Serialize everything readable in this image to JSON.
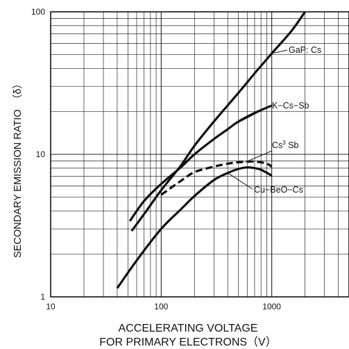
{
  "chart_data": {
    "type": "line",
    "title": "",
    "xscale": "log",
    "yscale": "log",
    "xlim": [
      10,
      5000
    ],
    "ylim": [
      1,
      100
    ],
    "grid": true,
    "xticks": [
      "10",
      "100",
      "1000"
    ],
    "yticks": [
      "1",
      "10",
      "100"
    ],
    "xlabel_line1": "ACCELERATING VOLTAGE",
    "xlabel_line2": "FOR PRIMARY ELECTRONS（V）",
    "ylabel": "SECONDARY EMISSION RATIO　（δ）",
    "series": [
      {
        "name": "GaP: Cs",
        "style": "solid",
        "x": [
          54,
          70,
          100,
          150,
          200,
          300,
          500,
          700,
          1000,
          1500,
          2000
        ],
        "y": [
          2.9,
          3.8,
          5.6,
          8.3,
          11.5,
          17,
          27,
          37,
          51,
          73,
          100
        ]
      },
      {
        "name": "K−Cs−Sb",
        "style": "solid",
        "x": [
          52,
          70,
          100,
          150,
          200,
          300,
          400,
          500,
          700,
          1000
        ],
        "y": [
          3.4,
          4.7,
          6.2,
          8.1,
          10,
          12.8,
          15,
          17,
          19.5,
          22
        ]
      },
      {
        "name": "Cs3 Sb",
        "style": "dashed",
        "x": [
          100,
          150,
          200,
          300,
          400,
          500,
          700,
          900,
          1000
        ],
        "y": [
          5.2,
          6.5,
          7.5,
          8.2,
          8.6,
          8.8,
          8.9,
          8.6,
          8.2
        ]
      },
      {
        "name": "Cu−BeO−Cs",
        "style": "solid",
        "x": [
          40,
          60,
          100,
          150,
          200,
          300,
          400,
          500,
          600,
          700,
          800,
          1000
        ],
        "y": [
          1.15,
          1.8,
          3.0,
          4.1,
          5.1,
          6.6,
          7.4,
          7.9,
          8.1,
          8.0,
          7.8,
          7.1
        ]
      }
    ],
    "annotations": [
      {
        "text": "GaP: Cs",
        "series": 0
      },
      {
        "text": "K−Cs−Sb",
        "series": 1
      },
      {
        "text": "Cs",
        "sup": "3",
        "text_after": " Sb",
        "series": 2
      },
      {
        "text": "Cu−BeO−Cs",
        "series": 3
      }
    ]
  }
}
